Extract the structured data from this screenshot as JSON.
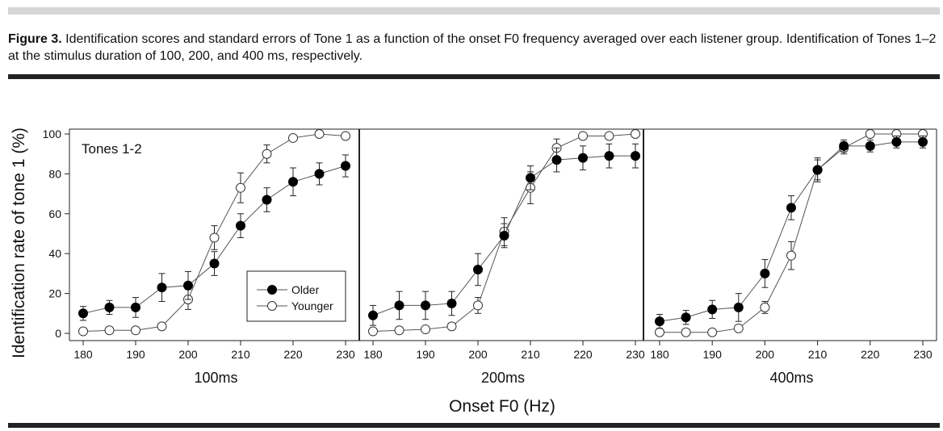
{
  "figure": {
    "caption_label": "Figure 3.",
    "caption_text": " Identification scores and standard errors of Tone 1 as a function of the onset F0 frequency averaged over each listener group. Identification of Tones 1–2 at the stimulus duration of 100, 200, and 400 ms, respectively."
  },
  "chart_data": {
    "type": "line",
    "ylabel": "Identification rate of tone 1 (%)",
    "xlabel": "Onset F0 (Hz)",
    "annotation": "Tones 1-2",
    "ylim": [
      0,
      100
    ],
    "xlim": [
      180,
      230
    ],
    "yticks": [
      0,
      20,
      40,
      60,
      80,
      100
    ],
    "xticks": [
      180,
      190,
      200,
      210,
      220,
      230
    ],
    "x": [
      180,
      185,
      190,
      195,
      200,
      205,
      210,
      215,
      220,
      225,
      230
    ],
    "legend": {
      "placement": "lower-right (first panel)",
      "entries": [
        "Older",
        "Younger"
      ]
    },
    "panels": [
      {
        "label": "100ms",
        "series": [
          {
            "name": "Older",
            "marker": "filled-circle",
            "values": [
              10,
              13,
              13,
              23,
              24,
              35,
              54,
              67,
              76,
              80,
              84
            ],
            "errors": [
              3.5,
              3.5,
              5,
              7,
              7,
              6,
              6,
              6,
              7,
              5.5,
              5.5
            ]
          },
          {
            "name": "Younger",
            "marker": "open-circle",
            "values": [
              1,
              1.5,
              1.5,
              3.5,
              17,
              48,
              73,
              90,
              98,
              100,
              99
            ],
            "errors": [
              0,
              0,
              0,
              1,
              5,
              6,
              7.5,
              4.5,
              0,
              0,
              0
            ]
          }
        ]
      },
      {
        "label": "200ms",
        "series": [
          {
            "name": "Older",
            "marker": "filled-circle",
            "values": [
              9,
              14,
              14,
              15,
              32,
              49,
              78,
              87,
              88,
              89,
              89
            ],
            "errors": [
              5,
              7,
              7,
              6,
              8,
              6,
              6,
              6,
              6,
              6,
              6
            ]
          },
          {
            "name": "Younger",
            "marker": "open-circle",
            "values": [
              1,
              1.5,
              2,
              3.5,
              14,
              51,
              73,
              93,
              99,
              99,
              100
            ],
            "errors": [
              0,
              0,
              0,
              1,
              4,
              7,
              8,
              4.5,
              0,
              0,
              0
            ]
          }
        ]
      },
      {
        "label": "400ms",
        "series": [
          {
            "name": "Older",
            "marker": "filled-circle",
            "values": [
              6,
              8,
              12,
              13,
              30,
              63,
              82,
              94,
              94,
              96,
              96
            ],
            "errors": [
              3.5,
              3.5,
              4.5,
              7,
              7,
              6,
              6,
              3,
              3,
              3,
              3
            ]
          },
          {
            "name": "Younger",
            "marker": "open-circle",
            "values": [
              0.5,
              0.5,
              0.5,
              2.5,
              13,
              39,
              82,
              93,
              100,
              100,
              100
            ],
            "errors": [
              0,
              0,
              0,
              0.5,
              3,
              7,
              5,
              3,
              0,
              0,
              0
            ]
          }
        ]
      }
    ]
  }
}
